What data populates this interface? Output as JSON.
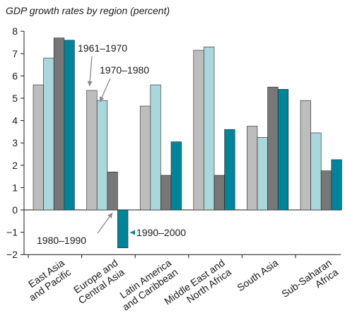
{
  "chart_data": {
    "type": "bar",
    "title": "GDP growth rates by region (percent)",
    "xlabel": "",
    "ylabel": "",
    "ylim": [
      -2,
      8
    ],
    "yticks": [
      "−2",
      "−1",
      "0",
      "1",
      "2",
      "3",
      "4",
      "5",
      "6",
      "7",
      "8"
    ],
    "grid": false,
    "categories": [
      [
        "East Asia",
        "and Pacific"
      ],
      [
        "Europe and",
        "Central Asia"
      ],
      [
        "Latin America",
        "and Caribbean"
      ],
      [
        "Middle East and",
        "North Africa"
      ],
      [
        "South Asia"
      ],
      [
        "Sub-Saharan",
        "Africa"
      ]
    ],
    "series": [
      {
        "name": "1961–1970",
        "color": "#bdbdbd",
        "values": [
          5.6,
          5.35,
          4.65,
          7.15,
          3.75,
          4.9
        ]
      },
      {
        "name": "1970–1980",
        "color": "#a9d7dc",
        "values": [
          6.8,
          4.9,
          5.6,
          7.3,
          3.25,
          3.45
        ]
      },
      {
        "name": "1980–1990",
        "color": "#777777",
        "values": [
          7.7,
          1.7,
          1.55,
          1.55,
          5.5,
          1.75
        ]
      },
      {
        "name": "1990–2000",
        "color": "#00849a",
        "values": [
          7.6,
          -1.7,
          3.05,
          3.6,
          5.4,
          2.25
        ]
      }
    ],
    "annotations": [
      {
        "series": 0,
        "text": "1961–1970"
      },
      {
        "series": 1,
        "text": "1970–1980"
      },
      {
        "series": 2,
        "text": "1980–1990"
      },
      {
        "series": 3,
        "text": "1990–2000"
      }
    ]
  }
}
